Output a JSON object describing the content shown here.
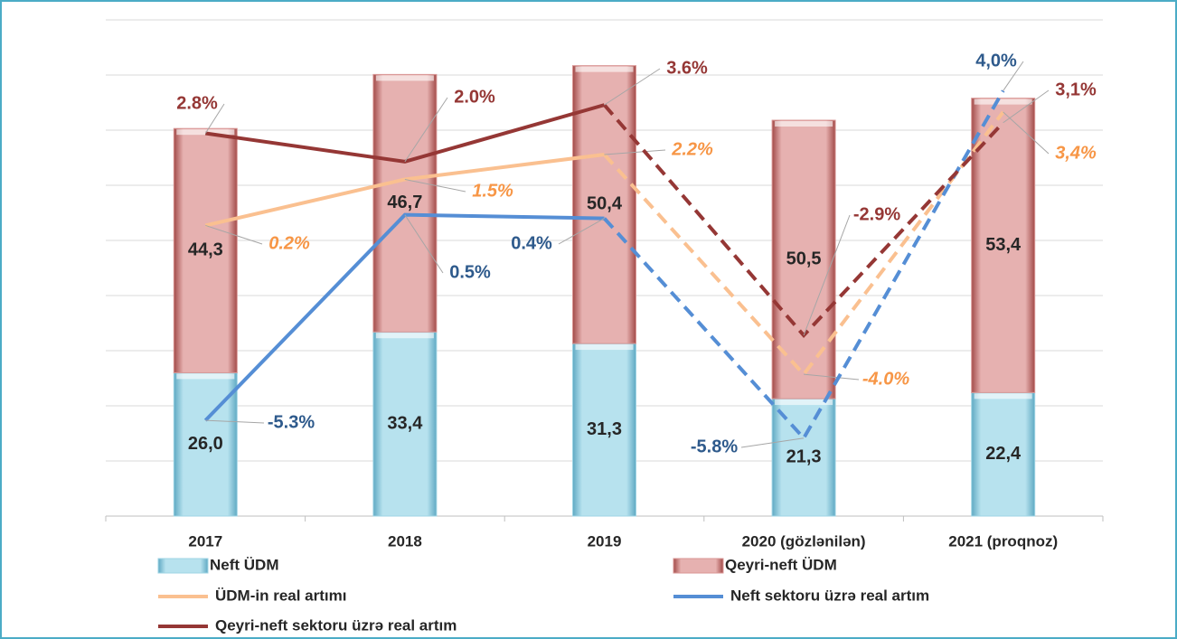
{
  "chart_data": {
    "type": "bar",
    "categories": [
      "2017",
      "2018",
      "2019",
      "2020 (gözlənilən)",
      "2021 (proqnoz)"
    ],
    "ylim": [
      0,
      90
    ],
    "yticks": [
      0,
      10,
      20,
      30,
      40,
      50,
      60,
      70,
      80,
      90
    ],
    "grid": true,
    "y2lim": [
      -8,
      6
    ],
    "stacked": true,
    "dashed_from_index": 2,
    "series": [
      {
        "name": "Neft ÜDM",
        "type": "bar",
        "color": "#9fd4e4",
        "values": [
          26.0,
          33.4,
          31.3,
          21.3,
          22.4
        ],
        "value_labels": [
          "26,0",
          "33,4",
          "31,3",
          "21,3",
          "22,4"
        ],
        "label_color": "#262626"
      },
      {
        "name": "Qeyri-neft ÜDM",
        "type": "bar",
        "color": "#d99694",
        "values": [
          44.3,
          46.7,
          50.4,
          50.5,
          53.4
        ],
        "value_labels": [
          "44,3",
          "46,7",
          "50,4",
          "50,5",
          "53,4"
        ],
        "label_color": "#262626"
      },
      {
        "name": "ÜDM-in real artımı",
        "type": "line",
        "axis": "y2",
        "color": "#fac090",
        "values": [
          0.2,
          1.5,
          2.2,
          -4.0,
          3.4
        ],
        "value_labels": [
          "0.2%",
          "1.5%",
          "2.2%",
          "-4.0%",
          "3,4%"
        ],
        "label_color": "#f79646",
        "italic": true
      },
      {
        "name": "Neft sektoru üzrə real artım",
        "type": "line",
        "axis": "y2",
        "color": "#558ed5",
        "values": [
          -5.3,
          0.5,
          0.4,
          -5.8,
          4.0
        ],
        "value_labels": [
          "-5.3%",
          "0.5%",
          "0.4%",
          "-5.8%",
          "4,0%"
        ],
        "label_color": "#2e5a8c"
      },
      {
        "name": "Qeyri-neft sektoru üzrə real artım",
        "type": "line",
        "axis": "y2",
        "color": "#953735",
        "values": [
          2.8,
          2.0,
          3.6,
          -2.9,
          3.1
        ],
        "value_labels": [
          "2.8%",
          "2.0%",
          "3.6%",
          "-2.9%",
          "3,1%"
        ],
        "label_color": "#953735"
      }
    ]
  }
}
